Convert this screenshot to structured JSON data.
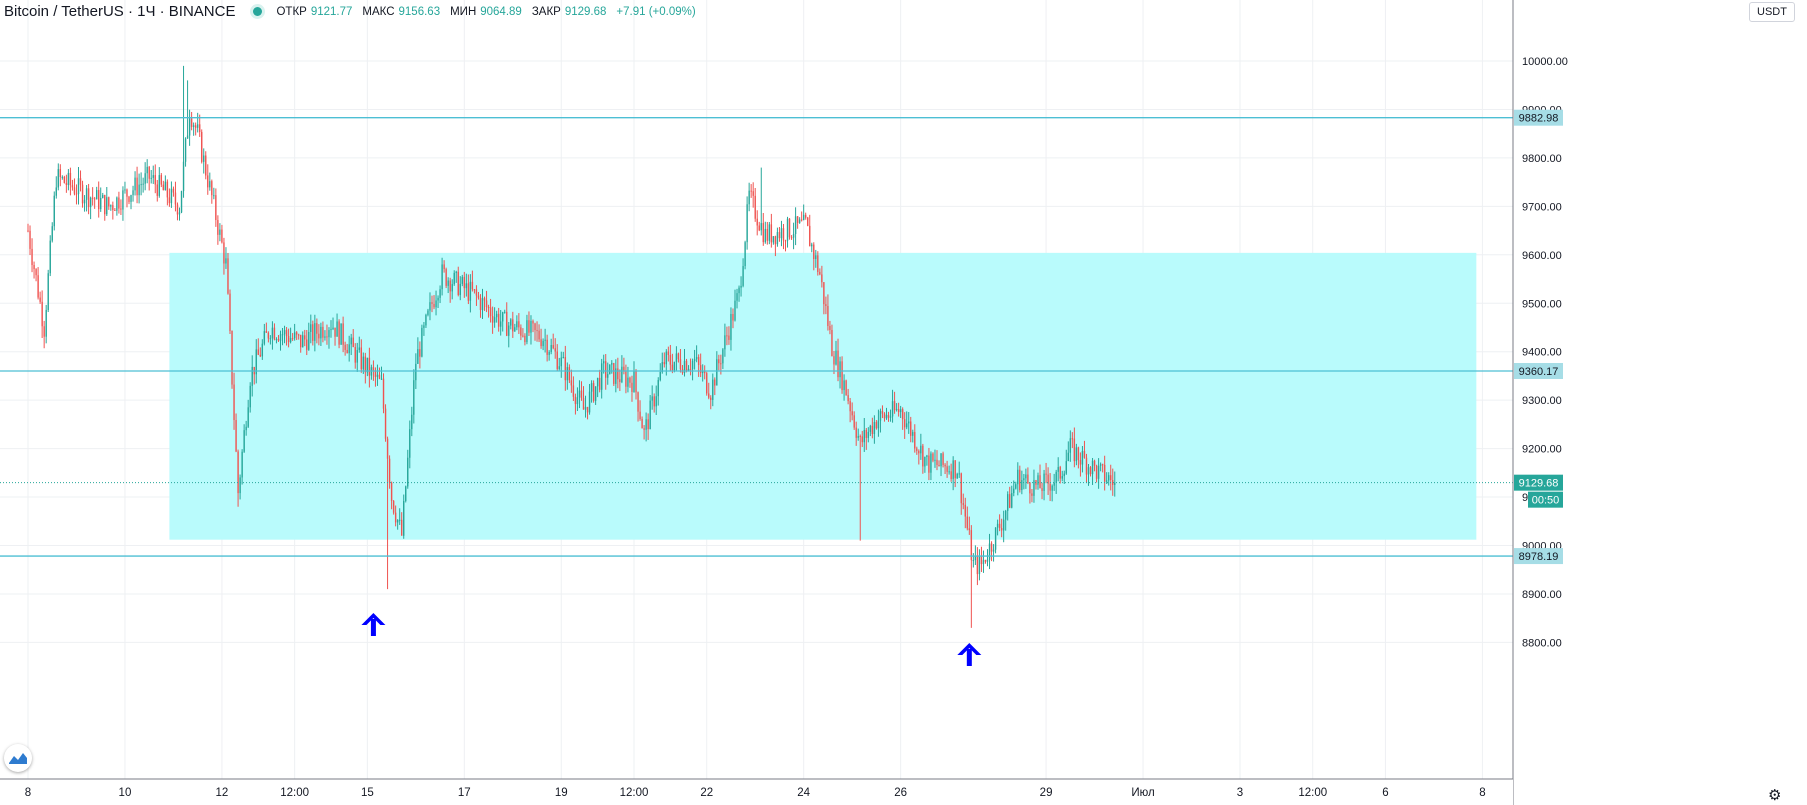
{
  "header": {
    "symbol": "Bitcoin / TetherUS · 1Ч · BINANCE",
    "open_label": "ОТКР",
    "open_value": "9121.77",
    "high_label": "МАКС",
    "high_value": "9156.63",
    "low_label": "МИН",
    "low_value": "9064.89",
    "close_label": "ЗАКР",
    "close_value": "9129.68",
    "change": "+7.91 (+0.09%)"
  },
  "currency_badge": "USDT",
  "countdown": "00:50",
  "colors": {
    "up": "#26a69a",
    "down": "#ef5350",
    "zone": "#b9fbfc",
    "line": "#4dbfd4",
    "price_tag": "#26a69a",
    "level_tag": "#a6dde6",
    "arrow": "#0000ff"
  },
  "icons": {
    "arrows": "arrow-up-icon",
    "logo": "tradingview-logo-icon",
    "settings": "gear-icon"
  },
  "chart_data": {
    "type": "candlestick",
    "interval": "1H",
    "ylim": [
      8750,
      10100
    ],
    "price_ticks": [
      "10000.00",
      "9900.00",
      "9800.00",
      "9700.00",
      "9600.00",
      "9500.00",
      "9400.00",
      "9300.00",
      "9200.00",
      "9100.00",
      "9000.00",
      "8900.00",
      "8800.00"
    ],
    "x_tick_labels": [
      "8",
      "10",
      "12",
      "12:00",
      "15",
      "17",
      "19",
      "12:00",
      "22",
      "24",
      "26",
      "29",
      "Июл",
      "3",
      "12:00",
      "6",
      "8"
    ],
    "x_tick_slots": [
      0,
      48,
      96,
      132,
      168,
      216,
      264,
      300,
      336,
      384,
      432,
      504,
      552,
      600,
      636,
      672,
      720
    ],
    "last_slot": 538,
    "horizontal_levels": [
      9882.98,
      9360.17,
      8978.19
    ],
    "level_labels": [
      "9882.98",
      "9360.17",
      "8978.19"
    ],
    "current_price": 9129.68,
    "current_price_label": "9129.68",
    "zone": {
      "slot_from": 70,
      "slot_to": 717,
      "price_from": 9012,
      "price_to": 9604
    },
    "arrow_slots": [
      171,
      466
    ],
    "price_path_anchors": [
      [
        0,
        9650
      ],
      [
        8,
        9450
      ],
      [
        14,
        9760
      ],
      [
        40,
        9700
      ],
      [
        60,
        9760
      ],
      [
        75,
        9700
      ],
      [
        80,
        9900
      ],
      [
        84,
        9850
      ],
      [
        92,
        9700
      ],
      [
        98,
        9580
      ],
      [
        104,
        9110
      ],
      [
        110,
        9350
      ],
      [
        120,
        9450
      ],
      [
        135,
        9420
      ],
      [
        150,
        9460
      ],
      [
        165,
        9380
      ],
      [
        175,
        9330
      ],
      [
        180,
        9100
      ],
      [
        185,
        9020
      ],
      [
        192,
        9380
      ],
      [
        200,
        9500
      ],
      [
        205,
        9560
      ],
      [
        220,
        9520
      ],
      [
        235,
        9460
      ],
      [
        255,
        9430
      ],
      [
        265,
        9370
      ],
      [
        275,
        9280
      ],
      [
        285,
        9360
      ],
      [
        300,
        9340
      ],
      [
        305,
        9230
      ],
      [
        315,
        9380
      ],
      [
        330,
        9380
      ],
      [
        338,
        9320
      ],
      [
        345,
        9420
      ],
      [
        352,
        9520
      ],
      [
        357,
        9720
      ],
      [
        365,
        9640
      ],
      [
        385,
        9660
      ],
      [
        392,
        9560
      ],
      [
        398,
        9410
      ],
      [
        405,
        9320
      ],
      [
        412,
        9210
      ],
      [
        420,
        9260
      ],
      [
        432,
        9280
      ],
      [
        445,
        9170
      ],
      [
        460,
        9160
      ],
      [
        468,
        8960
      ],
      [
        472,
        8960
      ],
      [
        482,
        9050
      ],
      [
        490,
        9140
      ],
      [
        500,
        9120
      ],
      [
        510,
        9140
      ],
      [
        516,
        9200
      ],
      [
        530,
        9150
      ],
      [
        538,
        9130
      ]
    ]
  }
}
